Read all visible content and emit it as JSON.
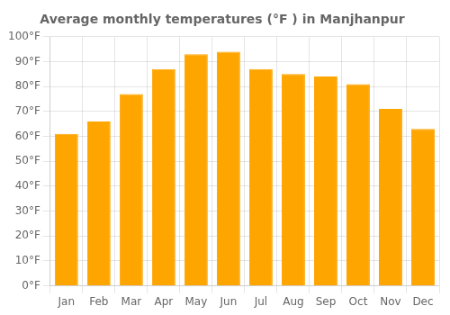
{
  "chart_data": {
    "type": "bar",
    "title": "Average monthly temperatures (°F ) in Manjhanpur",
    "categories": [
      "Jan",
      "Feb",
      "Mar",
      "Apr",
      "May",
      "Jun",
      "Jul",
      "Aug",
      "Sep",
      "Oct",
      "Nov",
      "Dec"
    ],
    "values": [
      61,
      66,
      77,
      87,
      93,
      94,
      87,
      85,
      84,
      81,
      71,
      63
    ],
    "color": "#FFA500",
    "ylim": [
      0,
      100
    ],
    "yticks": [
      {
        "value": 0,
        "label": "0°F"
      },
      {
        "value": 10,
        "label": "10°F"
      },
      {
        "value": 20,
        "label": "20°F"
      },
      {
        "value": 30,
        "label": "30°F"
      },
      {
        "value": 40,
        "label": "40°F"
      },
      {
        "value": 50,
        "label": "50°F"
      },
      {
        "value": 60,
        "label": "60°F"
      },
      {
        "value": 70,
        "label": "70°F"
      },
      {
        "value": 80,
        "label": "80°F"
      },
      {
        "value": 90,
        "label": "90°F"
      },
      {
        "value": 100,
        "label": "100°F"
      }
    ],
    "grid": true
  }
}
